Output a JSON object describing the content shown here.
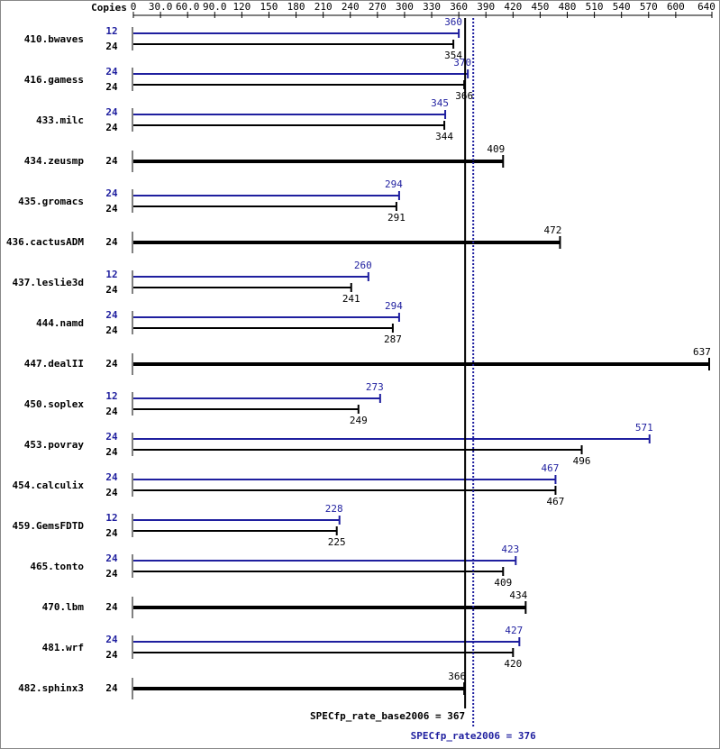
{
  "chart_data": {
    "type": "spec-bar",
    "copies_header": "Copies",
    "categories": [
      "410.bwaves",
      "416.gamess",
      "433.milc",
      "434.zeusmp",
      "435.gromacs",
      "436.cactusADM",
      "437.leslie3d",
      "444.namd",
      "447.dealII",
      "450.soplex",
      "453.povray",
      "454.calculix",
      "459.GemsFDTD",
      "465.tonto",
      "470.lbm",
      "481.wrf",
      "482.sphinx3"
    ],
    "series": [
      {
        "name": "SPECfp_rate2006",
        "color": "#1f1f9f",
        "copies": [
          12,
          24,
          24,
          null,
          24,
          null,
          12,
          24,
          null,
          12,
          24,
          24,
          12,
          24,
          null,
          24,
          null
        ],
        "values": [
          360,
          370,
          345,
          null,
          294,
          null,
          260,
          294,
          null,
          273,
          571,
          467,
          228,
          423,
          null,
          427,
          null
        ]
      },
      {
        "name": "SPECfp_rate_base2006",
        "color": "#000000",
        "copies": [
          24,
          24,
          24,
          24,
          24,
          24,
          24,
          24,
          24,
          24,
          24,
          24,
          24,
          24,
          24,
          24,
          24
        ],
        "values": [
          354,
          366,
          344,
          409,
          291,
          472,
          241,
          287,
          637,
          249,
          496,
          467,
          225,
          409,
          434,
          420,
          366
        ]
      }
    ],
    "reference_lines": [
      {
        "value": 367,
        "label": "SPECfp_rate_base2006 = 367",
        "color": "#000000",
        "dashed": false
      },
      {
        "value": 376,
        "label": "SPECfp_rate2006 = 376",
        "color": "#1f1f9f",
        "dashed": true
      }
    ],
    "xlim": [
      0,
      640
    ],
    "xticks": [
      0,
      {
        "value": 30,
        "label": "30.0"
      },
      {
        "value": 60,
        "label": "60.0"
      },
      {
        "value": 90,
        "label": "90.0"
      },
      120,
      150,
      180,
      210,
      240,
      270,
      300,
      330,
      360,
      390,
      420,
      450,
      480,
      510,
      540,
      570,
      600,
      640
    ]
  }
}
